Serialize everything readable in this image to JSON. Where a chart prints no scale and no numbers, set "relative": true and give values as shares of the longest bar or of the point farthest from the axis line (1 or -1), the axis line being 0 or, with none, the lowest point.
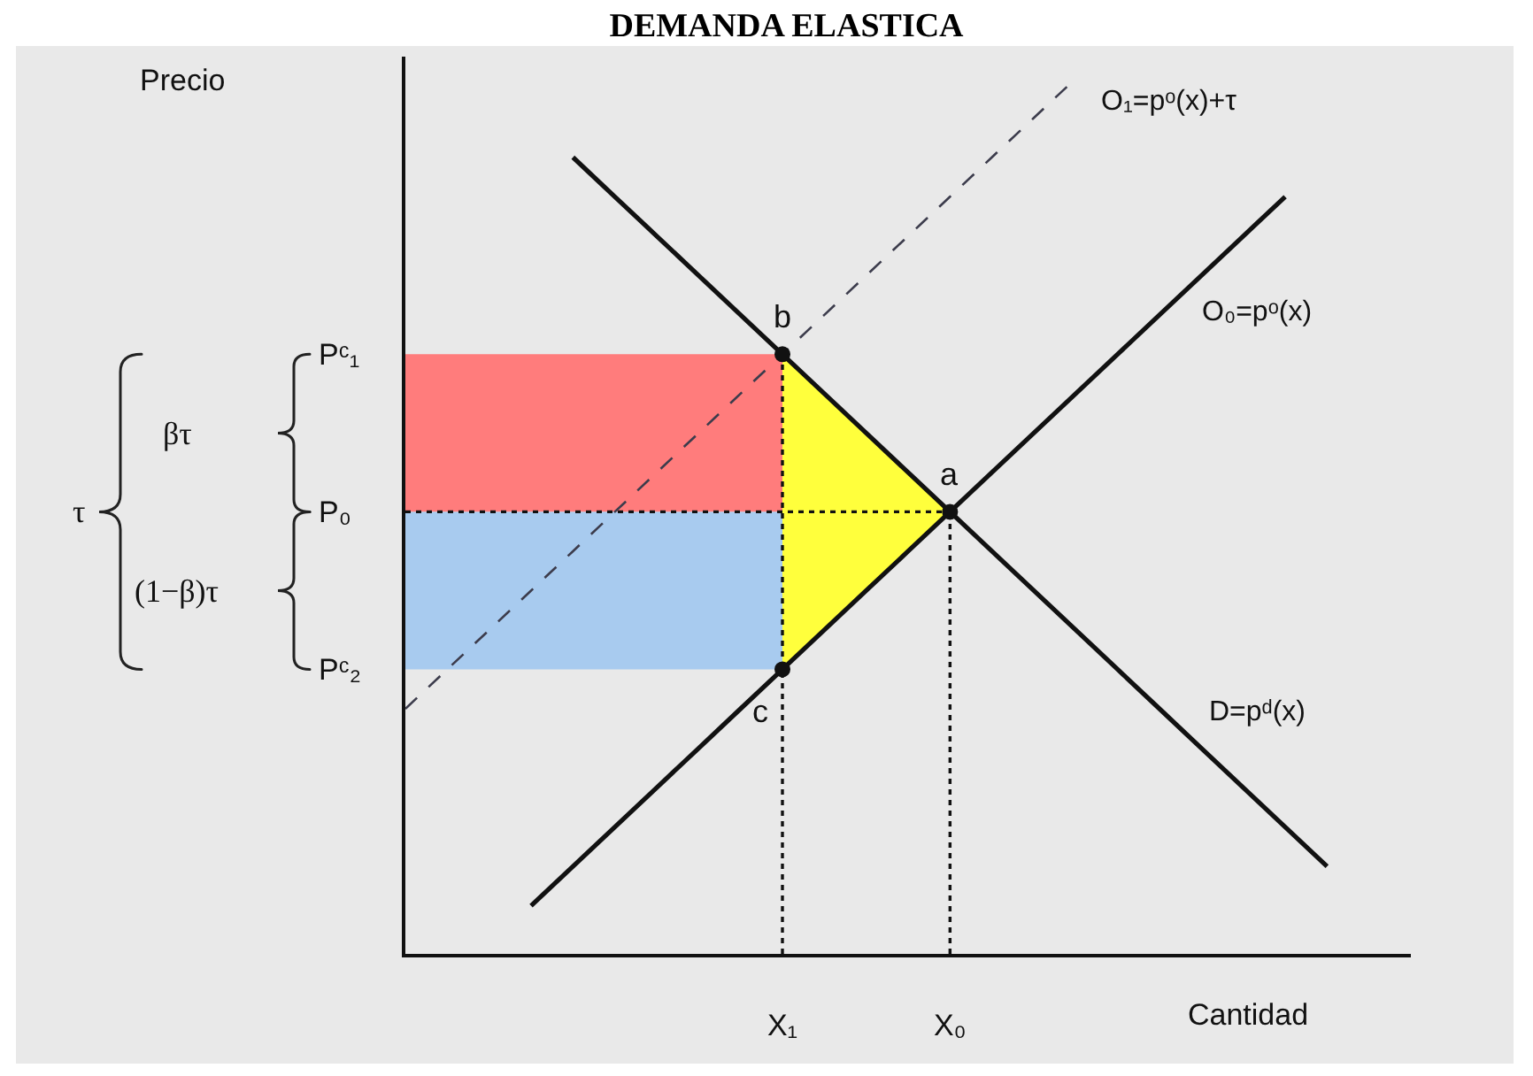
{
  "chart_data": {
    "type": "line",
    "title": "DEMANDA ELASTICA",
    "xlabel": "Cantidad",
    "relative": true,
    "categories": [
      null,
      null,
      null,
      null,
      null,
      null,
      null,
      null,
      null,
      "X₁",
      null,
      null,
      null,
      "X₀",
      null,
      null,
      null,
      null,
      null,
      null,
      null,
      null,
      null,
      null,
      null
    ],
    "series": [
      {
        "color": "#ff7c7c",
        "values": [
          null,
          null,
          null,
          null,
          null,
          null,
          null,
          null,
          null,
          null,
          null,
          null,
          null,
          null,
          null,
          null,
          null,
          null,
          null,
          null,
          null,
          null,
          null,
          null,
          null
        ],
        "upper": [
          0.685,
          0.685,
          0.685,
          0.685,
          0.685,
          0.685,
          0.685,
          0.685,
          0.685,
          0.685,
          null,
          null,
          null,
          null,
          null,
          null,
          null,
          null,
          null,
          null,
          null,
          null,
          null,
          null,
          null
        ],
        "lower": [
          0.505,
          0.505,
          0.505,
          0.505,
          0.505,
          0.505,
          0.505,
          0.505,
          0.505,
          0.505,
          null,
          null,
          null,
          null,
          null,
          null,
          null,
          null,
          null,
          null,
          null,
          null,
          null,
          null,
          null
        ]
      },
      {
        "color": "#a8cbef",
        "values": [
          null,
          null,
          null,
          null,
          null,
          null,
          null,
          null,
          null,
          null,
          null,
          null,
          null,
          null,
          null,
          null,
          null,
          null,
          null,
          null,
          null,
          null,
          null,
          null,
          null
        ],
        "upper": [
          0.505,
          0.505,
          0.505,
          0.505,
          0.505,
          0.505,
          0.505,
          0.505,
          0.505,
          0.505,
          null,
          null,
          null,
          null,
          null,
          null,
          null,
          null,
          null,
          null,
          null,
          null,
          null,
          null,
          null
        ],
        "lower": [
          0.325,
          0.325,
          0.325,
          0.325,
          0.325,
          0.325,
          0.325,
          0.325,
          0.325,
          0.325,
          null,
          null,
          null,
          null,
          null,
          null,
          null,
          null,
          null,
          null,
          null,
          null,
          null,
          null,
          null
        ]
      },
      {
        "color": "#ffff3c",
        "values": [
          null,
          null,
          null,
          null,
          null,
          null,
          null,
          null,
          null,
          null,
          null,
          null,
          null,
          null,
          null,
          null,
          null,
          null,
          null,
          null,
          null,
          null,
          null,
          null,
          null
        ],
        "upper": [
          null,
          null,
          null,
          null,
          null,
          null,
          null,
          null,
          null,
          0.685,
          0.64,
          0.595,
          0.55,
          0.505,
          null,
          null,
          null,
          null,
          null,
          null,
          null,
          null,
          null,
          null,
          null
        ],
        "lower": [
          null,
          null,
          null,
          null,
          null,
          null,
          null,
          null,
          null,
          0.325,
          0.37,
          0.415,
          0.46,
          0.505,
          null,
          null,
          null,
          null,
          null,
          null,
          null,
          null,
          null,
          null,
          null
        ]
      },
      {
        "color": "#111111",
        "line_style": "dotted",
        "values": [
          0.505,
          0.505,
          0.505,
          0.505,
          0.505,
          0.505,
          0.505,
          0.505,
          0.505,
          0.505,
          0.505,
          0.505,
          0.505,
          0.505,
          null,
          null,
          null,
          null,
          null,
          null,
          null,
          null,
          null,
          null,
          null
        ]
      },
      {
        "color": "#111111",
        "line_style": "dotted",
        "x": [
          "X₁",
          "X₁"
        ],
        "values": [
          0,
          0.685
        ]
      },
      {
        "color": "#111111",
        "line_style": "dotted",
        "x": [
          "X₀",
          "X₀"
        ],
        "values": [
          0,
          0.505
        ]
      },
      {
        "name": "O₁=pᵒ(x)+τ",
        "color": "#3c3c4c",
        "line_style": "dashed",
        "values": [
          0.28,
          0.325,
          0.37,
          0.415,
          0.46,
          0.505,
          0.55,
          0.595,
          0.64,
          0.685,
          0.73,
          0.775,
          0.82,
          0.865,
          0.91,
          0.955,
          1,
          null,
          null,
          null,
          null,
          null,
          null,
          null,
          null
        ]
      },
      {
        "name": "O₀=pᵒ(x)",
        "color": "#111111",
        "line_style": "solid",
        "values": [
          null,
          null,
          null,
          0.055,
          0.1,
          0.145,
          0.19,
          0.235,
          0.28,
          0.325,
          0.37,
          0.415,
          0.46,
          0.505,
          0.55,
          0.595,
          0.64,
          0.685,
          0.73,
          0.775,
          0.82,
          0.865,
          null,
          null,
          null
        ]
      },
      {
        "name": "D=pᵈ(x)",
        "color": "#111111",
        "line_style": "solid",
        "values": [
          null,
          null,
          null,
          null,
          0.91,
          0.865,
          0.82,
          0.775,
          0.73,
          0.685,
          0.64,
          0.595,
          0.55,
          0.505,
          0.46,
          0.415,
          0.37,
          0.325,
          0.28,
          0.235,
          0.19,
          0.145,
          0.1,
          null,
          null
        ]
      },
      {
        "type": "scatter",
        "color": "#111111",
        "marker": "circle",
        "x": [
          "X₁",
          "X₀",
          "X₁"
        ],
        "values": [
          0.685,
          0.505,
          0.325
        ]
      }
    ],
    "annotations": [
      {
        "text": "a",
        "x": "X₀",
        "y": 0.505
      },
      {
        "text": "b",
        "x": "X₁",
        "y": 0.685
      },
      {
        "text": "c",
        "x": "X₁",
        "y": 0.325
      },
      "Precio",
      "Pᶜ₁",
      "P₀",
      "Pᶜ₂",
      "τ",
      "βτ",
      "(1−β)τ"
    ]
  }
}
